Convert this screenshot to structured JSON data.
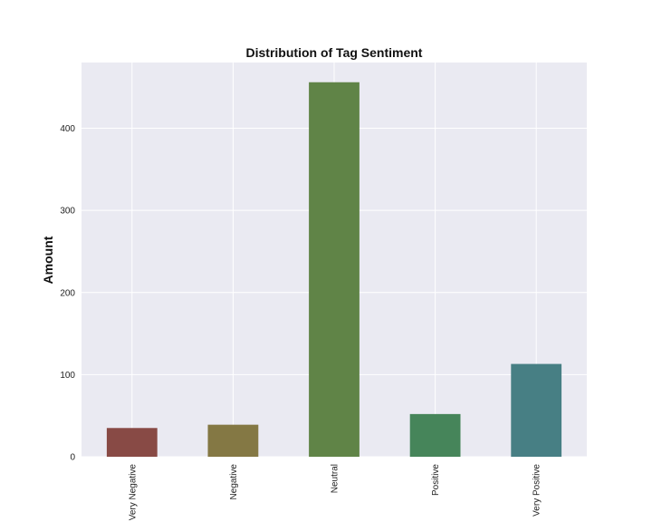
{
  "chart_data": {
    "type": "bar",
    "title": "Distribution of Tag Sentiment",
    "xlabel": "",
    "ylabel": "Amount",
    "categories": [
      "Very Negative",
      "Negative",
      "Neutral",
      "Positive",
      "Very Positive"
    ],
    "values": [
      35,
      39,
      456,
      52,
      113
    ],
    "colors": [
      "#884a45",
      "#847844",
      "#608447",
      "#46855a",
      "#477f84"
    ],
    "ylim": [
      0,
      480
    ],
    "yticks": [
      0,
      100,
      200,
      300,
      400
    ],
    "grid": true,
    "background": "#eaeaf2",
    "gridColor": "#ffffff"
  }
}
